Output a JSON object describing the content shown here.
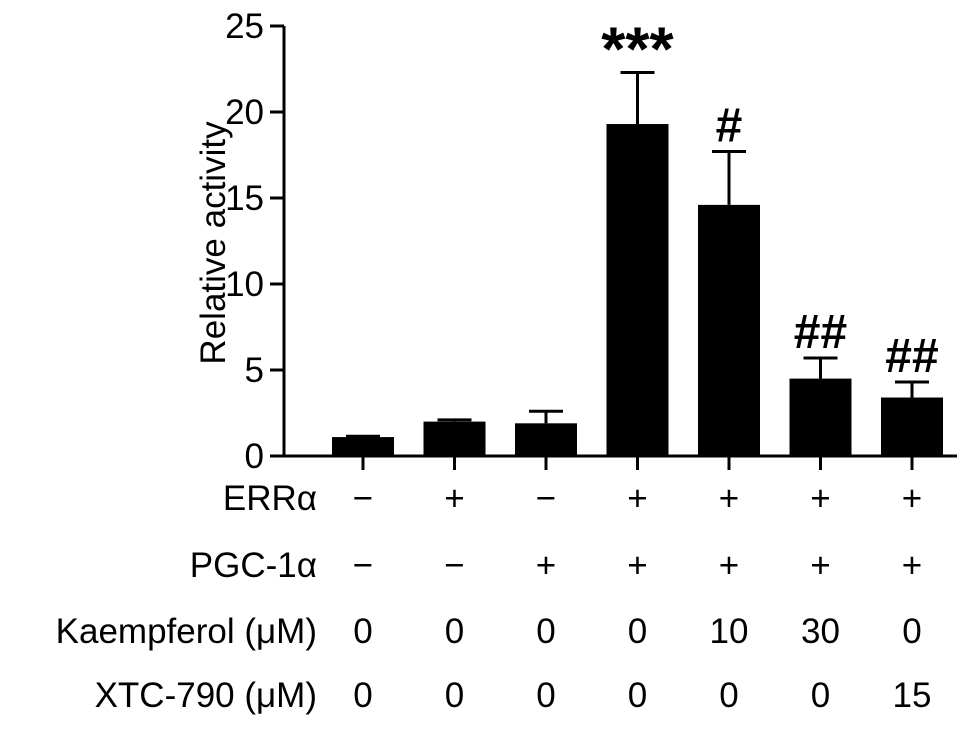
{
  "chart_data": {
    "type": "bar",
    "ylabel": "Relative activity",
    "ylim": [
      0,
      25
    ],
    "yticks": [
      0,
      5,
      10,
      15,
      20,
      25
    ],
    "values": [
      1.1,
      2.0,
      1.9,
      19.3,
      14.6,
      4.5,
      3.4
    ],
    "errors": [
      0.05,
      0.1,
      0.7,
      3.0,
      3.1,
      1.2,
      0.9
    ],
    "significance": [
      "",
      "",
      "",
      "***",
      "#",
      "##",
      "##"
    ],
    "bar_color": "#000000",
    "grid": false,
    "conditions": [
      {
        "label": "ERRα",
        "values": [
          "−",
          "+",
          "−",
          "+",
          "+",
          "+",
          "+"
        ]
      },
      {
        "label": "PGC-1α",
        "values": [
          "−",
          "−",
          "+",
          "+",
          "+",
          "+",
          "+"
        ]
      },
      {
        "label": "Kaempferol (μM)",
        "values": [
          "0",
          "0",
          "0",
          "0",
          "10",
          "30",
          "0"
        ]
      },
      {
        "label": "XTC-790 (μM)",
        "values": [
          "0",
          "0",
          "0",
          "0",
          "0",
          "0",
          "15"
        ]
      }
    ]
  }
}
